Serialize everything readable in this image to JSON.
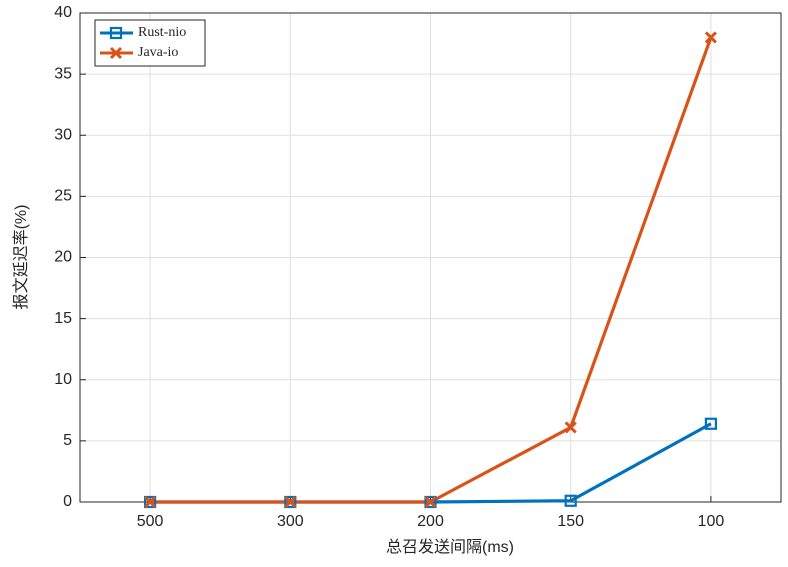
{
  "chart_data": {
    "type": "line",
    "x_label": "总召发送间隔(ms)",
    "y_label": "报文延迟率(%)",
    "categories": [
      "500",
      "300",
      "200",
      "150",
      "100"
    ],
    "series": [
      {
        "name": "Rust-nio",
        "color": "#0072bd",
        "marker": "square",
        "values": [
          0,
          0,
          0,
          0.1,
          6.4
        ]
      },
      {
        "name": "Java-io",
        "color": "#d95319",
        "marker": "x",
        "values": [
          0,
          0,
          0,
          6.1,
          38
        ]
      }
    ],
    "ylim": [
      0,
      40
    ],
    "yticks": [
      0,
      5,
      10,
      15,
      20,
      25,
      30,
      35,
      40
    ],
    "grid": true,
    "legend": "upper left"
  }
}
